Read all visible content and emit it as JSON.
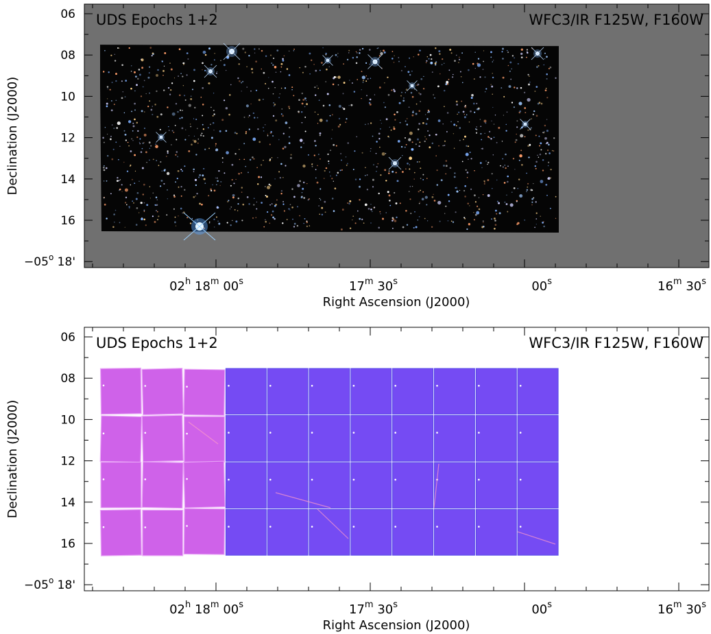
{
  "chart_data": [
    {
      "type": "image",
      "title_left": "UDS Epochs 1+2",
      "title_right": "WFC3/IR F125W, F160W",
      "xlabel": "Right Ascension (J2000)",
      "ylabel": "Declination (J2000)",
      "y_tick_labels": [
        "06",
        "08",
        "10",
        "12",
        "14",
        "16"
      ],
      "y_tick_bottom": {
        "main": "−05",
        "sup1": "o",
        "rest": " 18'"
      },
      "x_tick_labels": [
        {
          "h": "02",
          "m": "18",
          "s": "00",
          "show_h": true,
          "show_m": true
        },
        {
          "m": "17",
          "s": "30",
          "show_h": false,
          "show_m": true
        },
        {
          "s": "00",
          "show_h": false,
          "show_m": false
        },
        {
          "m": "16",
          "s": "30",
          "show_h": false,
          "show_m": true
        }
      ],
      "background": "#707070",
      "mosaic_color": "#050505"
    },
    {
      "type": "image",
      "title_left": "UDS Epochs 1+2",
      "title_right": "WFC3/IR F125W, F160W",
      "xlabel": "Right Ascension (J2000)",
      "ylabel": "Declination (J2000)",
      "y_tick_labels": [
        "06",
        "08",
        "10",
        "12",
        "14",
        "16"
      ],
      "y_tick_bottom": {
        "main": "−05",
        "sup1": "o",
        "rest": " 18'"
      },
      "x_tick_labels": [
        {
          "h": "02",
          "m": "18",
          "s": "00",
          "show_h": true,
          "show_m": true
        },
        {
          "m": "17",
          "s": "30",
          "show_h": false,
          "show_m": true
        },
        {
          "s": "00",
          "show_h": false,
          "show_m": false
        },
        {
          "m": "16",
          "s": "30",
          "show_h": false,
          "show_m": true
        }
      ],
      "background": "#ffffff",
      "exposure_colors": {
        "epoch1": "#cc55e8",
        "epoch2": "#6a3cf2"
      },
      "tile_columns_epoch1": 3,
      "tile_columns_epoch2": 8,
      "tile_rows": 4
    }
  ]
}
